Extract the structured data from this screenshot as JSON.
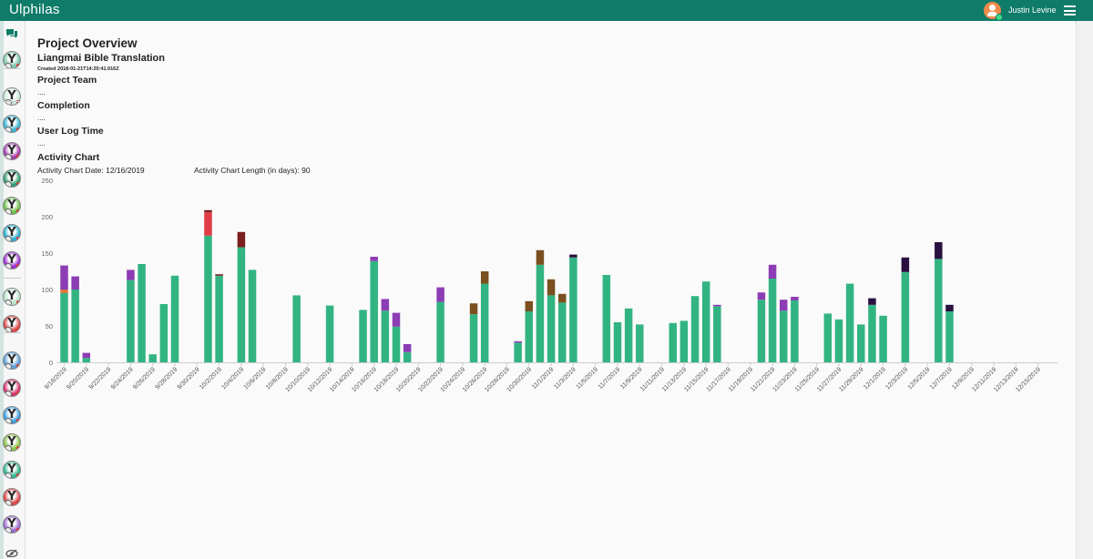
{
  "app": {
    "title": "Ulphilas"
  },
  "header": {
    "user_name": "Justin Levine"
  },
  "sidebar": {
    "icons": [
      {
        "color": "#7cc6a9"
      },
      {
        "color": "#c7e8d8"
      },
      {
        "color": "#36b6d6"
      },
      {
        "color": "#a13aa8"
      },
      {
        "color": "#2f9f6f"
      },
      {
        "color": "#6cc24a"
      },
      {
        "color": "#2bb0d0"
      },
      {
        "color": "#9a2fd0"
      },
      {
        "color": "#b8e3c8"
      },
      {
        "color": "#d94a4a"
      },
      {
        "color": "#5ea0d8"
      },
      {
        "color": "#d6336c"
      },
      {
        "color": "#3a9ee0"
      },
      {
        "color": "#8bc34a"
      },
      {
        "color": "#30b890"
      },
      {
        "color": "#d94a4a"
      },
      {
        "color": "#9c6ad0"
      }
    ]
  },
  "page": {
    "title": "Project Overview",
    "project_name": "Liangmai Bible Translation",
    "created": "Created 2018-01-21T14:20:41.916Z",
    "sections": {
      "team": "Project Team",
      "team_value": "....",
      "completion": "Completion",
      "completion_value": "....",
      "user_log": "User Log Time",
      "user_log_value": "....",
      "activity": "Activity Chart"
    },
    "activity_date": "Activity Chart Date: 12/16/2019",
    "activity_length": "Activity Chart Length (in days): 90"
  },
  "chart_data": {
    "type": "bar",
    "stacked": true,
    "ylim": [
      0,
      250
    ],
    "yticks": [
      0,
      50,
      100,
      150,
      200,
      250
    ],
    "grid": false,
    "legend": "none",
    "start_date": "9/18/2019",
    "tick_labels": [
      "9/18/2019",
      "9/20/2019",
      "9/22/2019",
      "9/24/2019",
      "9/26/2019",
      "9/28/2019",
      "9/30/2019",
      "10/2/2019",
      "10/4/2019",
      "10/6/2019",
      "10/8/2019",
      "10/10/2019",
      "10/12/2019",
      "10/14/2019",
      "10/16/2019",
      "10/18/2019",
      "10/20/2019",
      "10/22/2019",
      "10/24/2019",
      "10/26/2019",
      "10/28/2019",
      "10/30/2019",
      "11/1/2019",
      "11/3/2019",
      "11/5/2019",
      "11/7/2019",
      "11/9/2019",
      "11/11/2019",
      "11/13/2019",
      "11/15/2019",
      "11/17/2019",
      "11/19/2019",
      "11/21/2019",
      "11/23/2019",
      "11/25/2019",
      "11/27/2019",
      "11/29/2019",
      "12/1/2019",
      "12/3/2019",
      "12/5/2019",
      "12/7/2019",
      "12/9/2019",
      "12/11/2019",
      "12/13/2019",
      "12/15/2019"
    ],
    "colors": {
      "green": "#32b482",
      "red": "#e03c45",
      "purple": "#8c3cb4",
      "darkred": "#7a1e1e",
      "brown": "#7a5020",
      "darkpurple": "#2a1040",
      "orange": "#e07a3c"
    },
    "days": [
      {
        "x": "9/18/2019",
        "segments": [
          [
            "green",
            95
          ],
          [
            "orange",
            5
          ],
          [
            "purple",
            33
          ]
        ]
      },
      {
        "x": "9/19/2019",
        "segments": [
          [
            "green",
            100
          ],
          [
            "purple",
            18
          ]
        ]
      },
      {
        "x": "9/20/2019",
        "segments": [
          [
            "green",
            6
          ],
          [
            "purple",
            7
          ]
        ]
      },
      {
        "x": "9/24/2019",
        "segments": [
          [
            "green",
            113
          ],
          [
            "purple",
            14
          ]
        ]
      },
      {
        "x": "9/25/2019",
        "segments": [
          [
            "green",
            135
          ]
        ]
      },
      {
        "x": "9/26/2019",
        "segments": [
          [
            "green",
            11
          ]
        ]
      },
      {
        "x": "9/27/2019",
        "segments": [
          [
            "green",
            80
          ]
        ]
      },
      {
        "x": "9/28/2019",
        "segments": [
          [
            "green",
            119
          ]
        ]
      },
      {
        "x": "10/1/2019",
        "segments": [
          [
            "green",
            174
          ],
          [
            "red",
            32
          ],
          [
            "darkred",
            3
          ]
        ]
      },
      {
        "x": "10/2/2019",
        "segments": [
          [
            "green",
            119
          ],
          [
            "darkred",
            2
          ]
        ]
      },
      {
        "x": "10/4/2019",
        "segments": [
          [
            "green",
            158
          ],
          [
            "darkred",
            21
          ]
        ]
      },
      {
        "x": "10/5/2019",
        "segments": [
          [
            "green",
            127
          ]
        ]
      },
      {
        "x": "10/9/2019",
        "segments": [
          [
            "green",
            92
          ]
        ]
      },
      {
        "x": "10/12/2019",
        "segments": [
          [
            "green",
            78
          ]
        ]
      },
      {
        "x": "10/15/2019",
        "segments": [
          [
            "green",
            72
          ]
        ]
      },
      {
        "x": "10/16/2019",
        "segments": [
          [
            "green",
            139
          ],
          [
            "purple",
            6
          ]
        ]
      },
      {
        "x": "10/17/2019",
        "segments": [
          [
            "green",
            71
          ],
          [
            "purple",
            16
          ]
        ]
      },
      {
        "x": "10/18/2019",
        "segments": [
          [
            "green",
            49
          ],
          [
            "purple",
            19
          ]
        ]
      },
      {
        "x": "10/19/2019",
        "segments": [
          [
            "green",
            14
          ],
          [
            "purple",
            11
          ]
        ]
      },
      {
        "x": "10/22/2019",
        "segments": [
          [
            "green",
            83
          ],
          [
            "purple",
            20
          ]
        ]
      },
      {
        "x": "10/25/2019",
        "segments": [
          [
            "green",
            66
          ],
          [
            "brown",
            15
          ]
        ]
      },
      {
        "x": "10/26/2019",
        "segments": [
          [
            "green",
            108
          ],
          [
            "brown",
            17
          ]
        ]
      },
      {
        "x": "10/29/2019",
        "segments": [
          [
            "green",
            27
          ],
          [
            "purple",
            2
          ]
        ]
      },
      {
        "x": "10/30/2019",
        "segments": [
          [
            "green",
            70
          ],
          [
            "brown",
            14
          ]
        ]
      },
      {
        "x": "10/31/2019",
        "segments": [
          [
            "green",
            134
          ],
          [
            "brown",
            20
          ]
        ]
      },
      {
        "x": "11/1/2019",
        "segments": [
          [
            "green",
            92
          ],
          [
            "brown",
            22
          ]
        ]
      },
      {
        "x": "11/2/2019",
        "segments": [
          [
            "green",
            82
          ],
          [
            "brown",
            12
          ]
        ]
      },
      {
        "x": "11/3/2019",
        "segments": [
          [
            "green",
            144
          ],
          [
            "darkpurple",
            4
          ]
        ]
      },
      {
        "x": "11/6/2019",
        "segments": [
          [
            "green",
            120
          ]
        ]
      },
      {
        "x": "11/7/2019",
        "segments": [
          [
            "green",
            55
          ]
        ]
      },
      {
        "x": "11/8/2019",
        "segments": [
          [
            "green",
            74
          ]
        ]
      },
      {
        "x": "11/9/2019",
        "segments": [
          [
            "green",
            52
          ]
        ]
      },
      {
        "x": "11/12/2019",
        "segments": [
          [
            "green",
            54
          ]
        ]
      },
      {
        "x": "11/13/2019",
        "segments": [
          [
            "green",
            57
          ]
        ]
      },
      {
        "x": "11/14/2019",
        "segments": [
          [
            "green",
            91
          ]
        ]
      },
      {
        "x": "11/15/2019",
        "segments": [
          [
            "green",
            111
          ]
        ]
      },
      {
        "x": "11/16/2019",
        "segments": [
          [
            "green",
            77
          ],
          [
            "purple",
            2
          ]
        ]
      },
      {
        "x": "11/20/2019",
        "segments": [
          [
            "green",
            86
          ],
          [
            "purple",
            10
          ]
        ]
      },
      {
        "x": "11/21/2019",
        "segments": [
          [
            "green",
            115
          ],
          [
            "purple",
            19
          ]
        ]
      },
      {
        "x": "11/22/2019",
        "segments": [
          [
            "green",
            71
          ],
          [
            "purple",
            15
          ]
        ]
      },
      {
        "x": "11/23/2019",
        "segments": [
          [
            "green",
            85
          ],
          [
            "purple",
            5
          ]
        ]
      },
      {
        "x": "11/26/2019",
        "segments": [
          [
            "green",
            67
          ]
        ]
      },
      {
        "x": "11/27/2019",
        "segments": [
          [
            "green",
            59
          ]
        ]
      },
      {
        "x": "11/28/2019",
        "segments": [
          [
            "green",
            108
          ]
        ]
      },
      {
        "x": "11/29/2019",
        "segments": [
          [
            "green",
            52
          ]
        ]
      },
      {
        "x": "11/30/2019",
        "segments": [
          [
            "green",
            79
          ],
          [
            "darkpurple",
            9
          ]
        ]
      },
      {
        "x": "12/1/2019",
        "segments": [
          [
            "green",
            64
          ]
        ]
      },
      {
        "x": "12/3/2019",
        "segments": [
          [
            "green",
            124
          ],
          [
            "darkpurple",
            20
          ]
        ]
      },
      {
        "x": "12/6/2019",
        "segments": [
          [
            "green",
            142
          ],
          [
            "darkpurple",
            23
          ]
        ]
      },
      {
        "x": "12/7/2019",
        "segments": [
          [
            "green",
            70
          ],
          [
            "darkpurple",
            9
          ]
        ]
      }
    ]
  }
}
